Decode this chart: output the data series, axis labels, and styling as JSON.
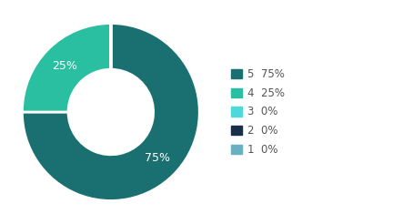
{
  "slices": [
    {
      "label": "5",
      "pct": 75,
      "color": "#1a7070"
    },
    {
      "label": "4",
      "pct": 25,
      "color": "#29bfa0"
    },
    {
      "label": "3",
      "pct": 0.0001,
      "color": "#4dd9d9"
    },
    {
      "label": "2",
      "pct": 0.0001,
      "color": "#1a2e4a"
    },
    {
      "label": "1",
      "pct": 0.0001,
      "color": "#6ab0c0"
    }
  ],
  "display_pcts": [
    "75%",
    "25%",
    "0%",
    "0%",
    "0%"
  ],
  "legend_labels": [
    "5  75%",
    "4  25%",
    "3  0%",
    "2  0%",
    "1  0%"
  ],
  "legend_colors": [
    "#1a7070",
    "#29bfa0",
    "#4dd9d9",
    "#1a2e4a",
    "#6ab0c0"
  ],
  "text_color": "#555555",
  "background_color": "#ffffff",
  "wedge_text_color": "#ffffff"
}
